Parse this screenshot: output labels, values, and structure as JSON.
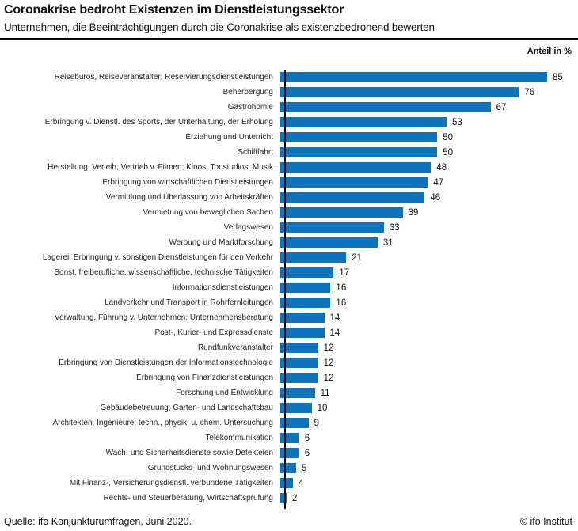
{
  "header": {
    "title": "Coronakrise bedroht Existenzen im Dienstleistungssektor",
    "subtitle": "Unternehmen, die Beeinträchtigungen durch die Coronakrise als existenzbedrohend bewerten",
    "unit_label": "Anteil in %"
  },
  "chart_data": {
    "type": "bar",
    "orientation": "horizontal",
    "title": "Coronakrise bedroht Existenzen im Dienstleistungssektor",
    "subtitle": "Unternehmen, die Beeinträchtigungen durch die Coronakrise als existenzbedrohend bewerten",
    "xlabel": "Anteil in %",
    "ylabel": "",
    "xlim": [
      0,
      90
    ],
    "grid": false,
    "legend": false,
    "sort": "descending",
    "categories": [
      "Reisebüros, Reiseveranstalter; Reservierungsdienstleistungen",
      "Beherbergung",
      "Gastronomie",
      "Erbringung v. Dienstl. des Sports, der Unterhaltung, der Erholung",
      "Erziehung und Unterricht",
      "Schifffahrt",
      "Herstellung, Verleih, Vertrieb v. Filmen; Kinos; Tonstudios, Musik",
      "Erbringung von wirtschaftlichen Dienstleistungen",
      "Vermittlung und Überlassung von Arbeitskräften",
      "Vermietung von beweglichen Sachen",
      "Verlagswesen",
      "Werbung und Marktforschung",
      "Lagerei; Erbringung v. sonstigen Dienstleistungen für den Verkehr",
      "Sonst. freiberufliche, wissenschaftliche, technische Tätigkeiten",
      "Informationsdienstleistungen",
      "Landverkehr und Transport in Rohrfernleitungen",
      "Verwaltung, Führung v. Unternehmen; Unternehmensberatung",
      "Post-, Kurier- und Expressdienste",
      "Rundfunkveranstalter",
      "Erbringung von Dienstleistungen der Informationstechnologie",
      "Erbringung von Finanzdienstleistungen",
      "Forschung und Entwicklung",
      "Gebäudebetreuung; Garten- und Landschaftsbau",
      "Architekten, Ingenieure; techn., physik. u. chem. Untersuchung",
      "Telekommunikation",
      "Wach- und Sicherheitsdienste sowie Detekteien",
      "Grundstücks- und Wohnungswesen",
      "Mit Finanz-, Versicherungsdienstl. verbundene Tätigkeiten",
      "Rechts- und Steuerberatung, Wirtschaftsprüfung"
    ],
    "values": [
      85,
      76,
      67,
      53,
      50,
      50,
      48,
      47,
      46,
      39,
      33,
      31,
      21,
      17,
      16,
      16,
      14,
      14,
      12,
      12,
      12,
      11,
      10,
      9,
      6,
      6,
      5,
      4,
      2
    ]
  },
  "colors": {
    "bar": "#0e73ba",
    "axis": "#000000",
    "text": "#111111"
  },
  "footer": {
    "source": "Quelle: ifo Konjunkturumfragen, Juni 2020.",
    "copyright": "© ifo Institut"
  }
}
